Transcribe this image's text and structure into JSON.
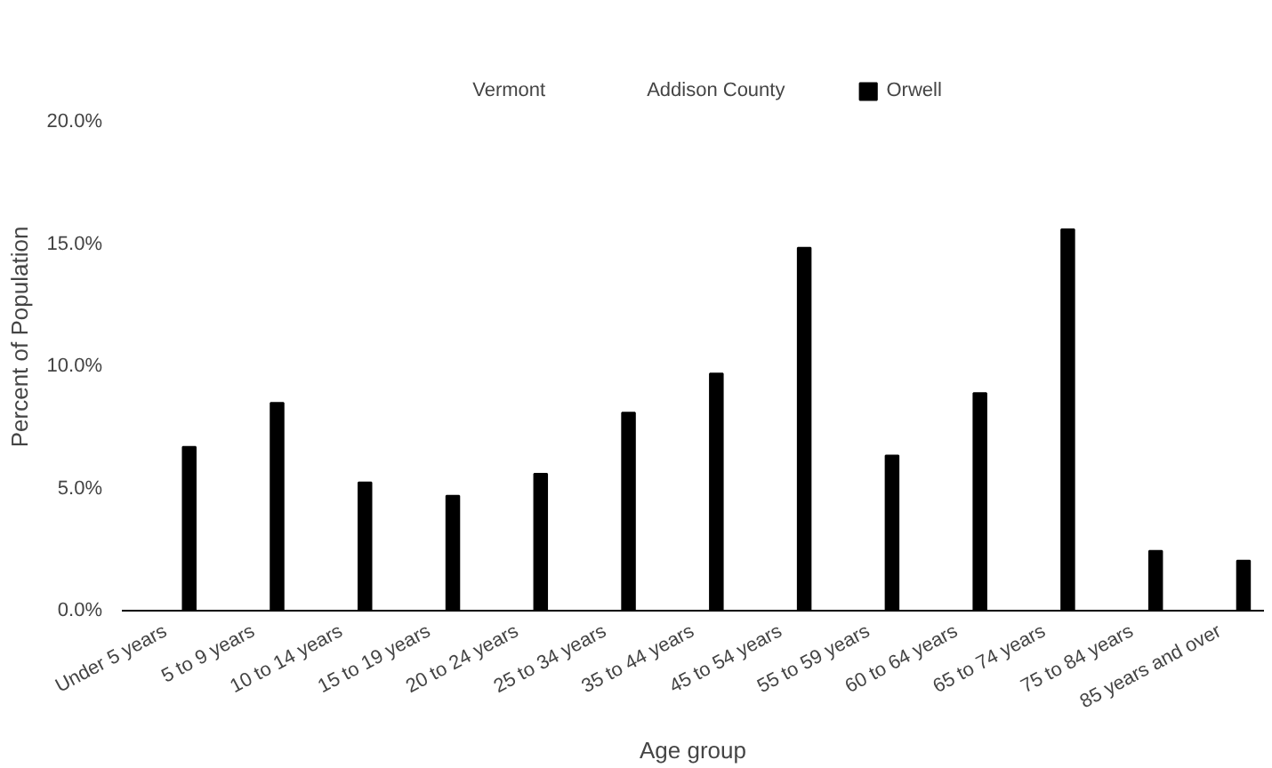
{
  "chart_data": {
    "type": "bar",
    "xlabel": "Age group",
    "ylabel": "Percent of Population",
    "categories": [
      "Under 5 years",
      "5 to 9 years",
      "10 to 14 years",
      "15 to 19 years",
      "20 to 24 years",
      "25 to 34 years",
      "35 to 44 years",
      "45 to 54 years",
      "55 to 59 years",
      "60 to 64 years",
      "65 to 74 years",
      "75 to 84 years",
      "85 years and over"
    ],
    "series": [
      {
        "name": "Vermont",
        "values": [
          null,
          null,
          null,
          null,
          null,
          null,
          null,
          null,
          null,
          null,
          null,
          null,
          null
        ]
      },
      {
        "name": "Addison County",
        "values": [
          null,
          null,
          null,
          null,
          null,
          null,
          null,
          null,
          null,
          null,
          null,
          null,
          null
        ]
      },
      {
        "name": "Orwell",
        "color": "#000000",
        "values": [
          6.7,
          8.5,
          5.25,
          4.7,
          5.6,
          8.1,
          9.7,
          14.85,
          6.35,
          8.9,
          15.6,
          2.45,
          2.05
        ]
      }
    ],
    "ylim": [
      0,
      20
    ],
    "yticks": [
      {
        "value": 0,
        "label": "0.0%"
      },
      {
        "value": 5,
        "label": "5.0%"
      },
      {
        "value": 10,
        "label": "10.0%"
      },
      {
        "value": 15,
        "label": "15.0%"
      },
      {
        "value": 20,
        "label": "20.0%"
      }
    ],
    "grid": false,
    "legend": "top"
  }
}
